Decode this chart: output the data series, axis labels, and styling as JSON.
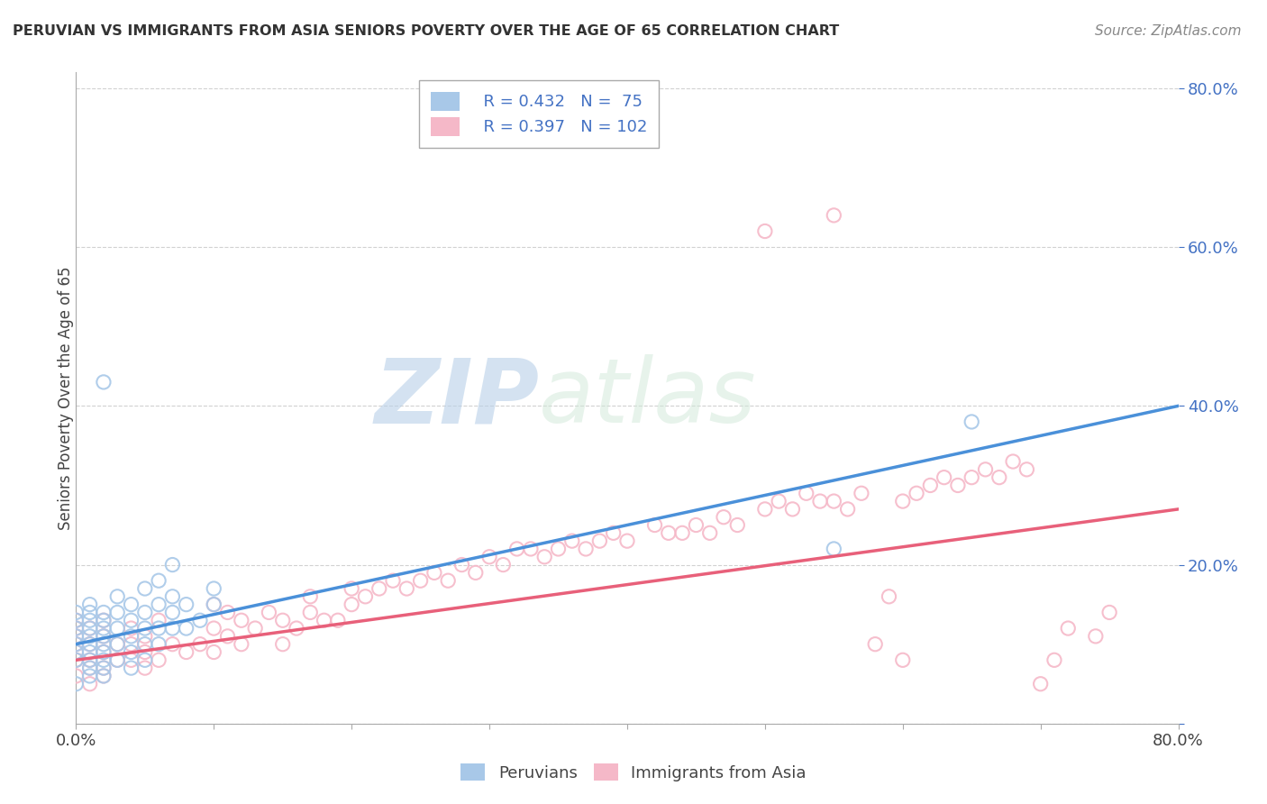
{
  "title": "PERUVIAN VS IMMIGRANTS FROM ASIA SENIORS POVERTY OVER THE AGE OF 65 CORRELATION CHART",
  "source": "Source: ZipAtlas.com",
  "ylabel": "Seniors Poverty Over the Age of 65",
  "xlim": [
    0.0,
    0.8
  ],
  "ylim": [
    0.0,
    0.82
  ],
  "xticks": [
    0.0,
    0.1,
    0.2,
    0.3,
    0.4,
    0.5,
    0.6,
    0.7,
    0.8
  ],
  "xticklabels": [
    "0.0%",
    "",
    "",
    "",
    "",
    "",
    "",
    "",
    "80.0%"
  ],
  "yticks": [
    0.0,
    0.2,
    0.4,
    0.6,
    0.8
  ],
  "yticklabels": [
    "",
    "20.0%",
    "40.0%",
    "60.0%",
    "80.0%"
  ],
  "legend_r1": "R = 0.432",
  "legend_n1": "N =  75",
  "legend_r2": "R = 0.397",
  "legend_n2": "N = 102",
  "color_peru": "#A8C8E8",
  "color_asia": "#F5B8C8",
  "line_color_peru": "#4A90D9",
  "line_color_asia": "#E8607A",
  "watermark_zip": "ZIP",
  "watermark_atlas": "atlas",
  "background_color": "#FFFFFF",
  "grid_color": "#CCCCCC",
  "peru_scatter_x": [
    0.0,
    0.0,
    0.0,
    0.0,
    0.0,
    0.0,
    0.0,
    0.0,
    0.01,
    0.01,
    0.01,
    0.01,
    0.01,
    0.01,
    0.01,
    0.01,
    0.01,
    0.01,
    0.02,
    0.02,
    0.02,
    0.02,
    0.02,
    0.02,
    0.02,
    0.02,
    0.02,
    0.03,
    0.03,
    0.03,
    0.03,
    0.03,
    0.04,
    0.04,
    0.04,
    0.04,
    0.04,
    0.05,
    0.05,
    0.05,
    0.05,
    0.05,
    0.06,
    0.06,
    0.06,
    0.06,
    0.07,
    0.07,
    0.07,
    0.07,
    0.08,
    0.08,
    0.09,
    0.1,
    0.1,
    0.02,
    0.55,
    0.65
  ],
  "peru_scatter_y": [
    0.08,
    0.09,
    0.1,
    0.11,
    0.12,
    0.13,
    0.14,
    0.05,
    0.07,
    0.08,
    0.09,
    0.1,
    0.11,
    0.12,
    0.13,
    0.14,
    0.15,
    0.06,
    0.06,
    0.07,
    0.08,
    0.09,
    0.1,
    0.11,
    0.12,
    0.13,
    0.14,
    0.08,
    0.1,
    0.12,
    0.14,
    0.16,
    0.07,
    0.09,
    0.11,
    0.13,
    0.15,
    0.08,
    0.1,
    0.12,
    0.14,
    0.17,
    0.1,
    0.12,
    0.15,
    0.18,
    0.12,
    0.14,
    0.16,
    0.2,
    0.12,
    0.15,
    0.13,
    0.15,
    0.17,
    0.43,
    0.22,
    0.38
  ],
  "asia_scatter_x": [
    0.0,
    0.0,
    0.0,
    0.0,
    0.0,
    0.0,
    0.0,
    0.01,
    0.01,
    0.01,
    0.01,
    0.01,
    0.02,
    0.02,
    0.02,
    0.02,
    0.02,
    0.03,
    0.03,
    0.04,
    0.04,
    0.04,
    0.05,
    0.05,
    0.05,
    0.06,
    0.06,
    0.07,
    0.08,
    0.09,
    0.1,
    0.1,
    0.1,
    0.11,
    0.11,
    0.12,
    0.12,
    0.13,
    0.14,
    0.15,
    0.15,
    0.16,
    0.17,
    0.17,
    0.18,
    0.19,
    0.2,
    0.2,
    0.21,
    0.22,
    0.23,
    0.24,
    0.25,
    0.26,
    0.27,
    0.28,
    0.29,
    0.3,
    0.31,
    0.32,
    0.33,
    0.34,
    0.35,
    0.36,
    0.37,
    0.38,
    0.39,
    0.4,
    0.42,
    0.43,
    0.44,
    0.45,
    0.46,
    0.47,
    0.48,
    0.5,
    0.51,
    0.52,
    0.53,
    0.54,
    0.55,
    0.56,
    0.57,
    0.58,
    0.59,
    0.6,
    0.61,
    0.62,
    0.63,
    0.64,
    0.65,
    0.66,
    0.67,
    0.68,
    0.69,
    0.7,
    0.71,
    0.72,
    0.74,
    0.75,
    0.5,
    0.55,
    0.6
  ],
  "asia_scatter_y": [
    0.08,
    0.09,
    0.1,
    0.11,
    0.12,
    0.13,
    0.06,
    0.07,
    0.08,
    0.1,
    0.12,
    0.05,
    0.07,
    0.09,
    0.11,
    0.13,
    0.06,
    0.08,
    0.1,
    0.08,
    0.1,
    0.12,
    0.07,
    0.09,
    0.11,
    0.08,
    0.13,
    0.1,
    0.09,
    0.1,
    0.09,
    0.12,
    0.15,
    0.11,
    0.14,
    0.1,
    0.13,
    0.12,
    0.14,
    0.1,
    0.13,
    0.12,
    0.14,
    0.16,
    0.13,
    0.13,
    0.15,
    0.17,
    0.16,
    0.17,
    0.18,
    0.17,
    0.18,
    0.19,
    0.18,
    0.2,
    0.19,
    0.21,
    0.2,
    0.22,
    0.22,
    0.21,
    0.22,
    0.23,
    0.22,
    0.23,
    0.24,
    0.23,
    0.25,
    0.24,
    0.24,
    0.25,
    0.24,
    0.26,
    0.25,
    0.27,
    0.28,
    0.27,
    0.29,
    0.28,
    0.28,
    0.27,
    0.29,
    0.1,
    0.16,
    0.28,
    0.29,
    0.3,
    0.31,
    0.3,
    0.31,
    0.32,
    0.31,
    0.33,
    0.32,
    0.05,
    0.08,
    0.12,
    0.11,
    0.14,
    0.62,
    0.64,
    0.08
  ],
  "peru_trendline": [
    0.1,
    0.4
  ],
  "asia_trendline": [
    0.08,
    0.27
  ]
}
